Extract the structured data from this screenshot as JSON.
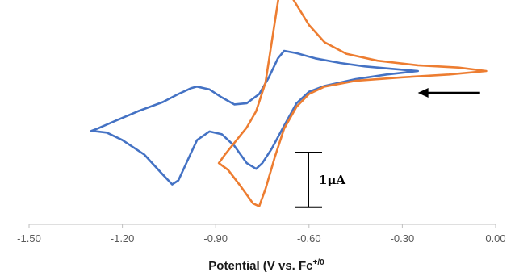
{
  "chart_data": {
    "type": "line",
    "title": "",
    "xlabel": "Potential (V vs. Fc",
    "xlabel_sup": "+/0",
    "ylabel": "",
    "xlim": [
      -1.5,
      0.0
    ],
    "ylim": [
      -2.5,
      2.4
    ],
    "x_ticks": [
      -1.5,
      -1.2,
      -0.9,
      -0.6,
      -0.3,
      0.0
    ],
    "x_tick_labels": [
      "-1.50",
      "-1.20",
      "-0.90",
      "-0.60",
      "-0.30",
      "0.00"
    ],
    "grid": false,
    "legend": "none",
    "scale_bar": {
      "label": "1μA",
      "value": 1.0
    },
    "scan_direction_arrow": {
      "from_x": -0.05,
      "to_x": -0.25,
      "y": 0.0
    },
    "series": [
      {
        "color": "#4472C4",
        "points": [
          [
            -0.25,
            0.0
          ],
          [
            -0.35,
            -0.06
          ],
          [
            -0.45,
            -0.14
          ],
          [
            -0.55,
            -0.26
          ],
          [
            -0.6,
            -0.36
          ],
          [
            -0.64,
            -0.56
          ],
          [
            -0.68,
            -0.95
          ],
          [
            -0.72,
            -1.35
          ],
          [
            -0.75,
            -1.6
          ],
          [
            -0.77,
            -1.7
          ],
          [
            -0.8,
            -1.6
          ],
          [
            -0.84,
            -1.3
          ],
          [
            -0.88,
            -1.1
          ],
          [
            -0.92,
            -1.05
          ],
          [
            -0.96,
            -1.2
          ],
          [
            -0.99,
            -1.55
          ],
          [
            -1.02,
            -1.9
          ],
          [
            -1.04,
            -1.97
          ],
          [
            -1.07,
            -1.8
          ],
          [
            -1.13,
            -1.45
          ],
          [
            -1.2,
            -1.2
          ],
          [
            -1.25,
            -1.07
          ],
          [
            -1.28,
            -1.05
          ],
          [
            -1.3,
            -1.04
          ],
          [
            -1.28,
            -1.0
          ],
          [
            -1.22,
            -0.86
          ],
          [
            -1.15,
            -0.7
          ],
          [
            -1.07,
            -0.54
          ],
          [
            -1.02,
            -0.4
          ],
          [
            -0.98,
            -0.3
          ],
          [
            -0.96,
            -0.27
          ],
          [
            -0.92,
            -0.32
          ],
          [
            -0.88,
            -0.46
          ],
          [
            -0.84,
            -0.58
          ],
          [
            -0.8,
            -0.56
          ],
          [
            -0.76,
            -0.4
          ],
          [
            -0.73,
            -0.12
          ],
          [
            -0.7,
            0.22
          ],
          [
            -0.68,
            0.35
          ],
          [
            -0.64,
            0.31
          ],
          [
            -0.58,
            0.22
          ],
          [
            -0.5,
            0.14
          ],
          [
            -0.42,
            0.08
          ],
          [
            -0.34,
            0.04
          ],
          [
            -0.25,
            0.0
          ]
        ]
      },
      {
        "color": "#ED7D31",
        "points": [
          [
            -0.03,
            0.0
          ],
          [
            -0.15,
            -0.06
          ],
          [
            -0.3,
            -0.11
          ],
          [
            -0.45,
            -0.17
          ],
          [
            -0.55,
            -0.27
          ],
          [
            -0.6,
            -0.4
          ],
          [
            -0.64,
            -0.62
          ],
          [
            -0.68,
            -1.0
          ],
          [
            -0.71,
            -1.5
          ],
          [
            -0.74,
            -2.05
          ],
          [
            -0.76,
            -2.35
          ],
          [
            -0.78,
            -2.3
          ],
          [
            -0.82,
            -2.0
          ],
          [
            -0.86,
            -1.72
          ],
          [
            -0.89,
            -1.6
          ],
          [
            -0.87,
            -1.45
          ],
          [
            -0.84,
            -1.25
          ],
          [
            -0.8,
            -0.98
          ],
          [
            -0.77,
            -0.7
          ],
          [
            -0.74,
            -0.2
          ],
          [
            -0.72,
            0.5
          ],
          [
            -0.7,
            1.2
          ],
          [
            -0.69,
            1.5
          ],
          [
            -0.67,
            1.42
          ],
          [
            -0.64,
            1.15
          ],
          [
            -0.6,
            0.8
          ],
          [
            -0.55,
            0.5
          ],
          [
            -0.48,
            0.3
          ],
          [
            -0.38,
            0.18
          ],
          [
            -0.25,
            0.1
          ],
          [
            -0.12,
            0.06
          ],
          [
            -0.03,
            0.0
          ]
        ]
      }
    ]
  }
}
